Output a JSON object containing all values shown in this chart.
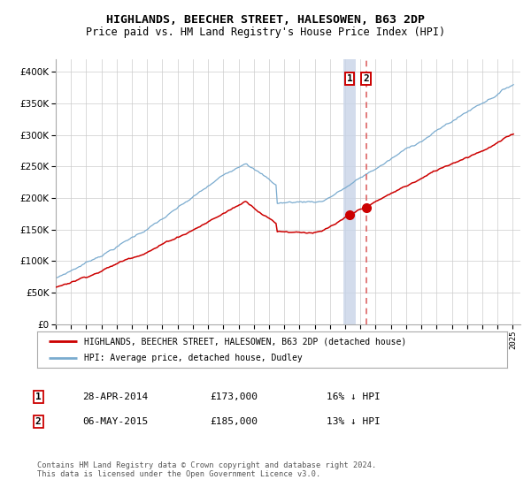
{
  "title": "HIGHLANDS, BEECHER STREET, HALESOWEN, B63 2DP",
  "subtitle": "Price paid vs. HM Land Registry's House Price Index (HPI)",
  "legend_line1": "HIGHLANDS, BEECHER STREET, HALESOWEN, B63 2DP (detached house)",
  "legend_line2": "HPI: Average price, detached house, Dudley",
  "annotation1_date": "28-APR-2014",
  "annotation1_price": "£173,000",
  "annotation1_hpi_diff": "16% ↓ HPI",
  "annotation2_date": "06-MAY-2015",
  "annotation2_price": "£185,000",
  "annotation2_hpi_diff": "13% ↓ HPI",
  "footer": "Contains HM Land Registry data © Crown copyright and database right 2024.\nThis data is licensed under the Open Government Licence v3.0.",
  "red_color": "#cc0000",
  "blue_color": "#7aabcf",
  "vline1_color": "#c8d4e8",
  "vline2_color": "#dd6666",
  "background_color": "#ffffff",
  "grid_color": "#cccccc",
  "ylim": [
    0,
    420000
  ],
  "yticks": [
    0,
    50000,
    100000,
    150000,
    200000,
    250000,
    300000,
    350000,
    400000
  ],
  "start_year": 1995,
  "end_year": 2025,
  "sale1_year": 2014.29,
  "sale1_value": 173000,
  "sale2_year": 2015.37,
  "sale2_value": 185000
}
